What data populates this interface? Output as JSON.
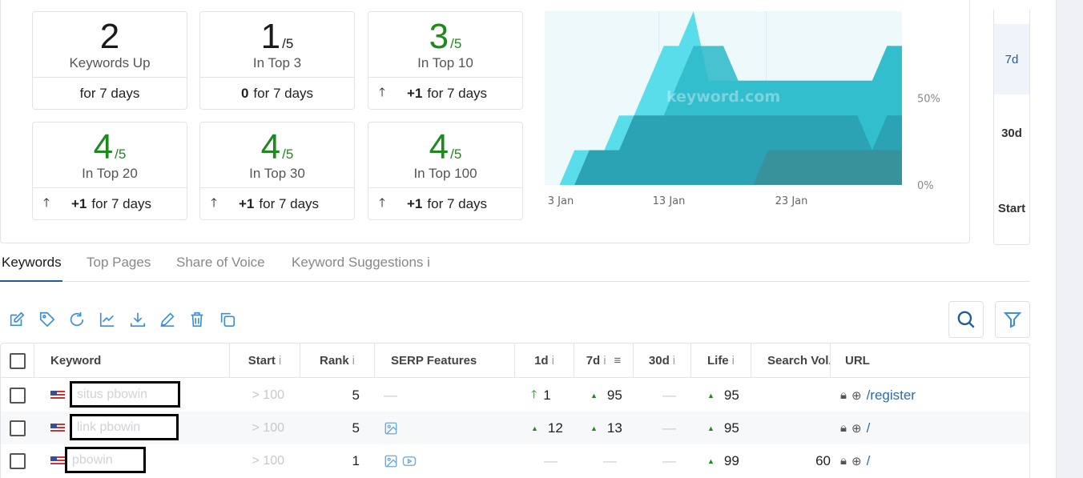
{
  "summary_cards": [
    {
      "value": "2",
      "of": "",
      "label": "Keywords Up",
      "footer_value": "",
      "footer_text": "for 7 days",
      "arrow": false,
      "value_color": "dark"
    },
    {
      "value": "1",
      "of": "/5",
      "label": "In Top 3",
      "footer_value": "0",
      "footer_text": "for 7 days",
      "arrow": false,
      "value_color": "dark"
    },
    {
      "value": "3",
      "of": "/5",
      "label": "In Top 10",
      "footer_value": "+1",
      "footer_text": "for 7 days",
      "arrow": true,
      "value_color": "green"
    },
    {
      "value": "4",
      "of": "/5",
      "label": "In Top 20",
      "footer_value": "+1",
      "footer_text": "for 7 days",
      "arrow": true,
      "value_color": "green"
    },
    {
      "value": "4",
      "of": "/5",
      "label": "In Top 30",
      "footer_value": "+1",
      "footer_text": "for 7 days",
      "arrow": true,
      "value_color": "green"
    },
    {
      "value": "4",
      "of": "/5",
      "label": "In Top 100",
      "footer_value": "+1",
      "footer_text": "for 7 days",
      "arrow": true,
      "value_color": "green"
    }
  ],
  "chart_data": {
    "type": "area",
    "watermark": "keyword.com",
    "x_ticks": [
      "3 Jan",
      "13 Jan",
      "23 Jan"
    ],
    "y_ticks": [
      "50%",
      "0%"
    ],
    "ylim": [
      0,
      100
    ],
    "series": [
      {
        "color": "#3fd8e6",
        "values": [
          0,
          0,
          20,
          20,
          20,
          40,
          40,
          60,
          80,
          80,
          100,
          60,
          60,
          60,
          60,
          60,
          60,
          60,
          60,
          60,
          60,
          60,
          60,
          80,
          80
        ]
      },
      {
        "color": "#2cb8c8",
        "values": [
          0,
          0,
          0,
          20,
          20,
          20,
          40,
          40,
          40,
          60,
          80,
          80,
          80,
          60,
          60,
          60,
          60,
          60,
          60,
          60,
          60,
          60,
          60,
          80,
          80
        ]
      },
      {
        "color": "#2a9fb0",
        "values": [
          0,
          0,
          0,
          20,
          20,
          20,
          40,
          40,
          40,
          40,
          40,
          40,
          40,
          40,
          40,
          40,
          40,
          40,
          40,
          40,
          40,
          40,
          20,
          40,
          40
        ]
      },
      {
        "color": "#3a8f98",
        "values": [
          0,
          0,
          0,
          0,
          0,
          0,
          0,
          0,
          0,
          0,
          0,
          0,
          0,
          0,
          0,
          20,
          20,
          20,
          20,
          20,
          20,
          20,
          20,
          20,
          20
        ]
      }
    ]
  },
  "period": {
    "options": [
      "7d",
      "30d",
      "Start"
    ],
    "active": "7d"
  },
  "tabs": [
    "Keywords",
    "Top Pages",
    "Share of Voice",
    "Keyword Suggestions"
  ],
  "tabs_info": "i",
  "table": {
    "headers": {
      "keyword": "Keyword",
      "start": "Start",
      "rank": "Rank",
      "serp": "SERP Features",
      "d1": "1d",
      "d7": "7d",
      "d30": "30d",
      "life": "Life",
      "volume": "Search Vol.",
      "url": "URL",
      "info": "i"
    },
    "rows": [
      {
        "keyword": "situs pbowin",
        "start": "> 100",
        "rank": "5",
        "serp": "—",
        "d1": "1",
        "d7": "95",
        "d30": "—",
        "life": "95",
        "volume": "",
        "url": "/register"
      },
      {
        "keyword": "link pbowin",
        "start": "> 100",
        "rank": "5",
        "serp": "image",
        "d1": "12",
        "d7": "13",
        "d30": "—",
        "life": "95",
        "volume": "",
        "url": "/"
      },
      {
        "keyword": "pbowin",
        "start": "> 100",
        "rank": "1",
        "serp": "image,video",
        "d1": "—",
        "d7": "—",
        "d30": "—",
        "life": "99",
        "volume": "60",
        "url": "/"
      }
    ]
  }
}
